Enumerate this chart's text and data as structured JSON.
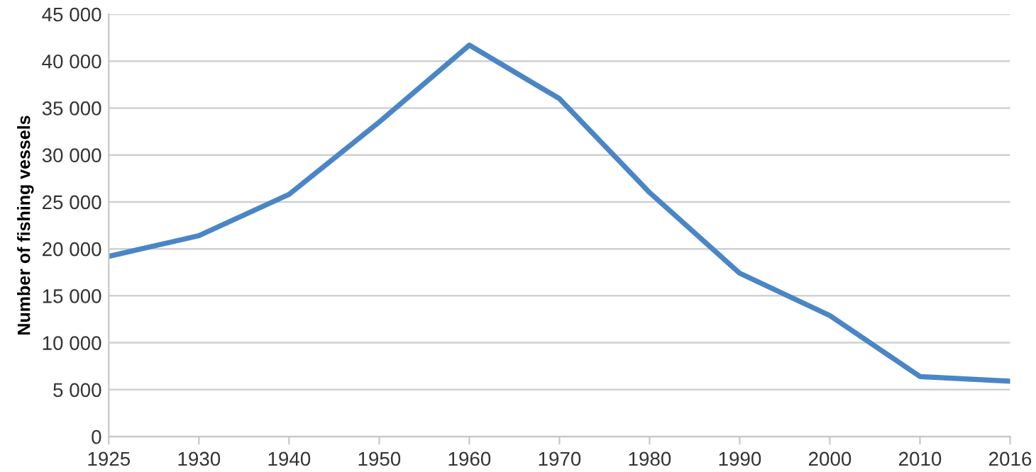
{
  "chart_data": {
    "type": "line",
    "ylabel": "Number of fishing vessels",
    "categories": [
      "1925",
      "1930",
      "1940",
      "1950",
      "1960",
      "1970",
      "1980",
      "1990",
      "2000",
      "2010",
      "2016"
    ],
    "series": [
      {
        "color": "#4a86c5",
        "values": [
          19200,
          21400,
          25800,
          33500,
          41700,
          36000,
          26000,
          17400,
          12900,
          6400,
          5900
        ]
      }
    ],
    "ylim": [
      0,
      45000
    ],
    "yticks": [
      0,
      {
        "value": 5000,
        "label": "5 000"
      },
      {
        "value": 10000,
        "label": "10 000"
      },
      {
        "value": 15000,
        "label": "15 000"
      },
      {
        "value": 20000,
        "label": "20 000"
      },
      {
        "value": 25000,
        "label": "25 000"
      },
      {
        "value": 30000,
        "label": "30 000"
      },
      {
        "value": 35000,
        "label": "35 000"
      },
      {
        "value": 40000,
        "label": "40 000"
      },
      {
        "value": 45000,
        "label": "45 000"
      }
    ],
    "grid": "y",
    "legend": false
  }
}
